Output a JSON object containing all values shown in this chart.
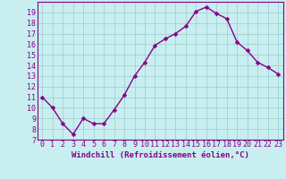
{
  "x": [
    0,
    1,
    2,
    3,
    4,
    5,
    6,
    7,
    8,
    9,
    10,
    11,
    12,
    13,
    14,
    15,
    16,
    17,
    18,
    19,
    20,
    21,
    22,
    23
  ],
  "y": [
    11,
    10,
    8.5,
    7.5,
    9,
    8.5,
    8.5,
    9.8,
    11.2,
    13,
    14.3,
    15.9,
    16.5,
    17.0,
    17.7,
    19.1,
    19.5,
    18.9,
    18.4,
    16.2,
    15.4,
    14.3,
    13.8,
    13.2
  ],
  "line_color": "#880088",
  "marker_color": "#880088",
  "bg_color": "#c8eef0",
  "grid_color": "#99cccc",
  "axis_color": "#880088",
  "tick_color": "#880088",
  "xlabel": "Windchill (Refroidissement éolien,°C)",
  "ylim": [
    7,
    20
  ],
  "xlim": [
    -0.5,
    23.5
  ],
  "yticks": [
    7,
    8,
    9,
    10,
    11,
    12,
    13,
    14,
    15,
    16,
    17,
    18,
    19
  ],
  "xticks": [
    0,
    1,
    2,
    3,
    4,
    5,
    6,
    7,
    8,
    9,
    10,
    11,
    12,
    13,
    14,
    15,
    16,
    17,
    18,
    19,
    20,
    21,
    22,
    23
  ],
  "xlabel_fontsize": 6.5,
  "tick_fontsize": 6,
  "marker_size": 2.5,
  "line_width": 1.0
}
